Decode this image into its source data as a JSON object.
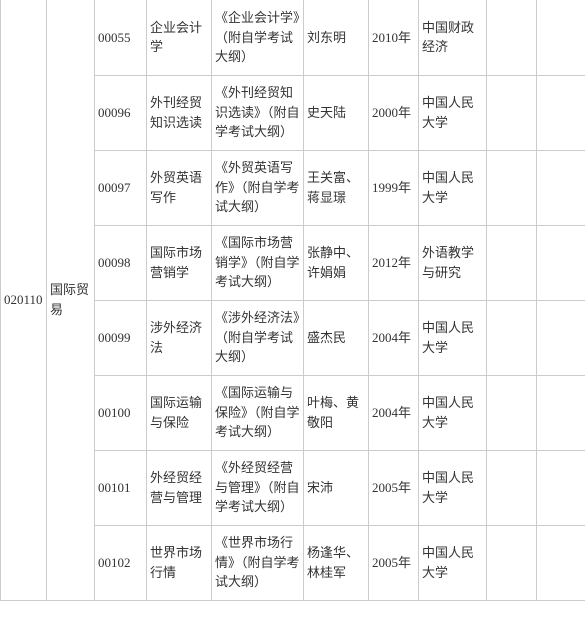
{
  "table": {
    "major_code": "020110",
    "major_name": "国际贸易",
    "rows": [
      {
        "num": "00055",
        "course": "企业会计学",
        "book": "《企业会计学》（附自学考试大纲）",
        "author": "刘东明",
        "year": "2010年",
        "publisher": "中国财政经济"
      },
      {
        "num": "00096",
        "course": "外刊经贸知识选读",
        "book": "《外刊经贸知识选读》（附自学考试大纲）",
        "author": "史天陆",
        "year": "2000年",
        "publisher": "中国人民大学"
      },
      {
        "num": "00097",
        "course": "外贸英语写作",
        "book": "《外贸英语写作》（附自学考试大纲）",
        "author": "王关富、蒋显璟",
        "year": "1999年",
        "publisher": "中国人民大学"
      },
      {
        "num": "00098",
        "course": "国际市场营销学",
        "book": "《国际市场营销学》（附自学考试大纲）",
        "author": "张静中、许娟娟",
        "year": "2012年",
        "publisher": "外语教学与研究"
      },
      {
        "num": "00099",
        "course": "涉外经济法",
        "book": "《涉外经济法》（附自学考试大纲）",
        "author": "盛杰民",
        "year": "2004年",
        "publisher": "中国人民大学"
      },
      {
        "num": "00100",
        "course": "国际运输与保险",
        "book": "《国际运输与保险》（附自学考试大纲）",
        "author": "叶梅、黄敬阳",
        "year": "2004年",
        "publisher": "中国人民大学"
      },
      {
        "num": "00101",
        "course": "外经贸经营与管理",
        "book": "《外经贸经营与管理》（附自学考试大纲）",
        "author": "宋沛",
        "year": "2005年",
        "publisher": "中国人民大学"
      },
      {
        "num": "00102",
        "course": "世界市场行情",
        "book": "《世界市场行情》（附自学考试大纲）",
        "author": "杨逢华、林桂军",
        "year": "2005年",
        "publisher": "中国人民大学"
      }
    ]
  },
  "styles": {
    "border_color": "#cccccc",
    "text_color": "#333333",
    "background_color": "#ffffff",
    "font_size": 13,
    "font_family": "SimSun"
  }
}
